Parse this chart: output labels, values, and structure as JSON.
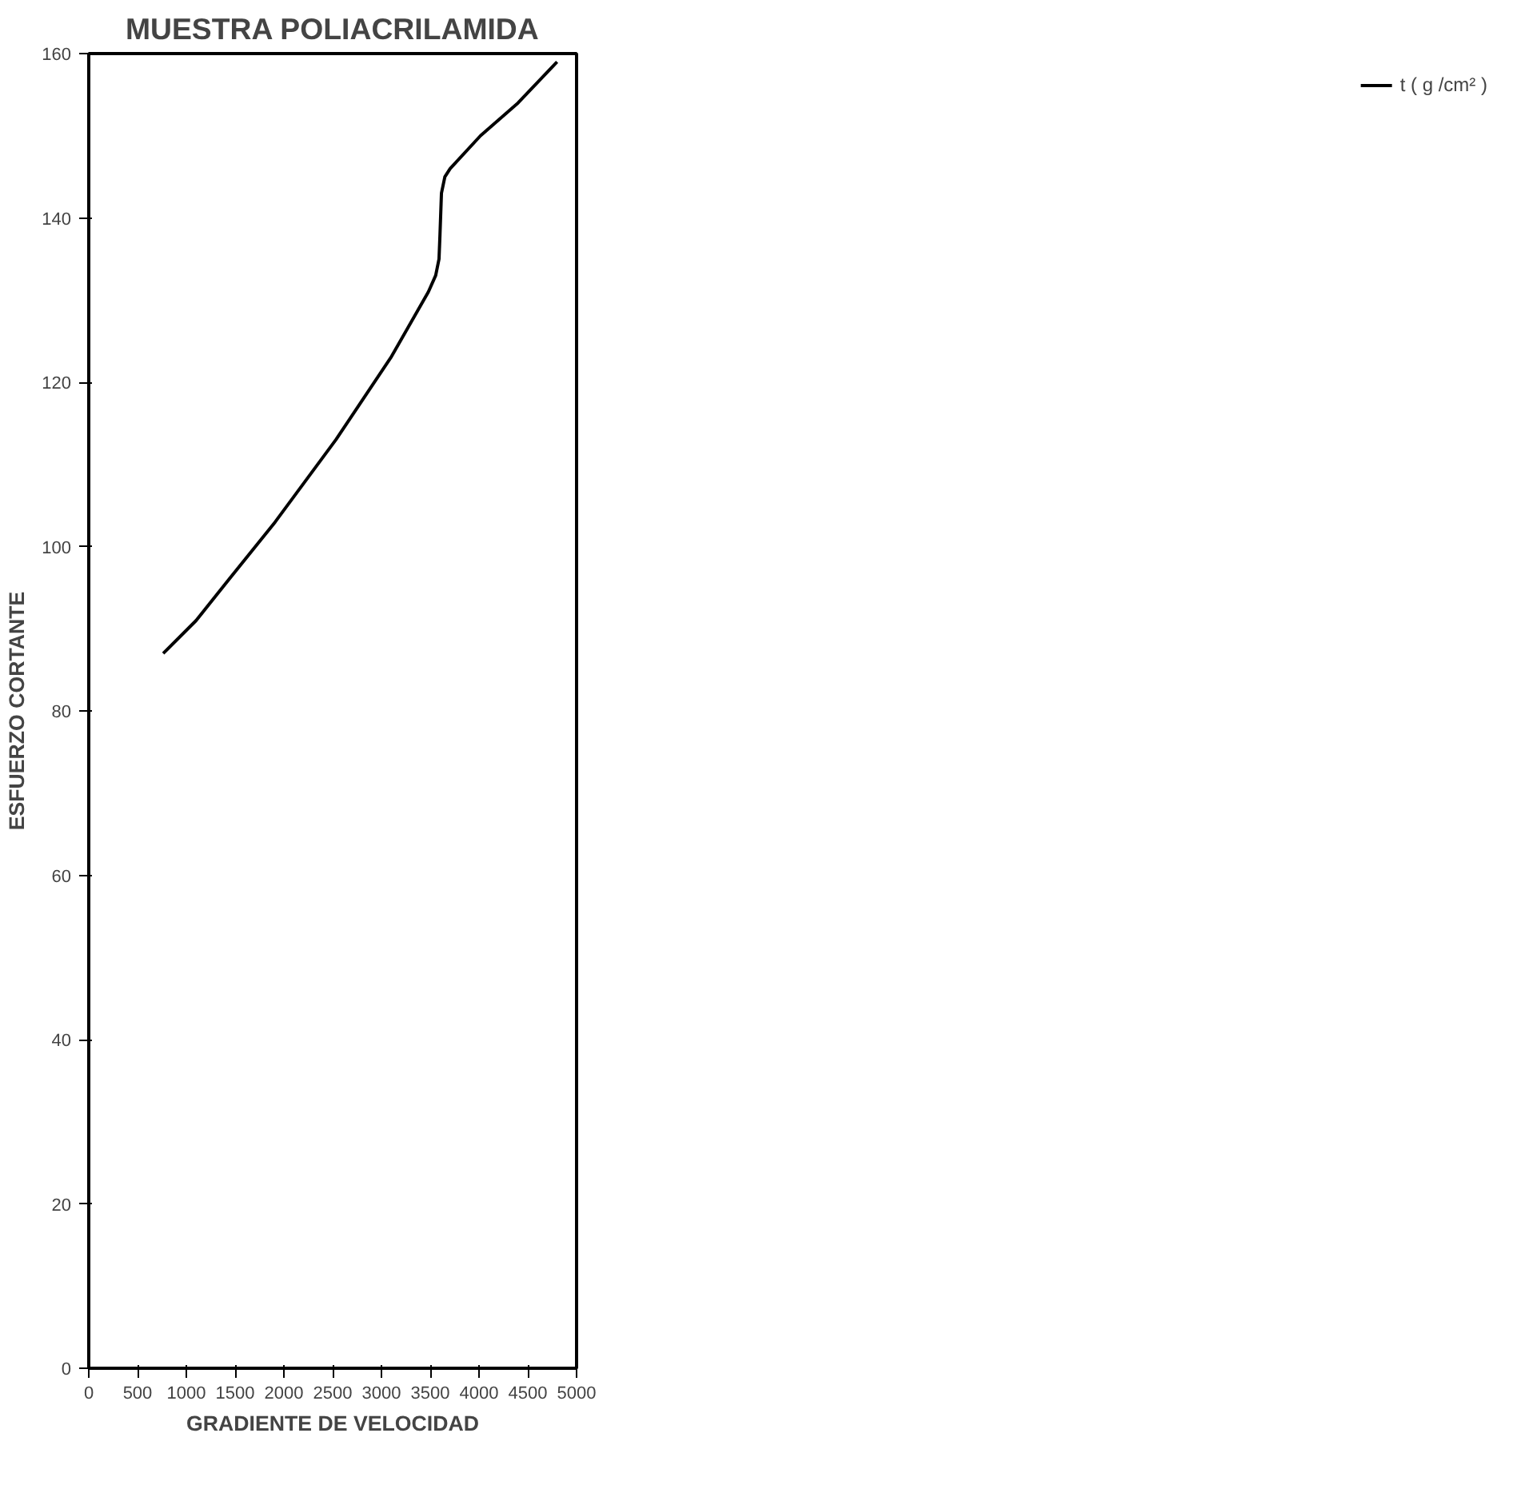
{
  "chart_data": {
    "type": "line",
    "title": "MUESTRA POLIACRILAMIDA",
    "xlabel": "GRADIENTE DE VELOCIDAD",
    "ylabel": "ESFUERZO CORTANTE",
    "series": [
      {
        "name": "t ( g /cm² )",
        "color": "#000000",
        "x": [
          763,
          1100,
          1437,
          1911,
          2533,
          3096,
          3481,
          3556,
          3590,
          3600,
          3615,
          3650,
          3704,
          4015,
          4400,
          4800
        ],
        "values": [
          87,
          91,
          96,
          103,
          113,
          123,
          131,
          133,
          135,
          138,
          143,
          145,
          146,
          150,
          154,
          159
        ]
      }
    ],
    "xlim": [
      0,
      5000
    ],
    "xticks": [
      0,
      500,
      1000,
      1500,
      2000,
      2500,
      3000,
      3500,
      4000,
      4500,
      5000
    ],
    "ylim": [
      0,
      160
    ],
    "yticks": [
      0,
      20,
      40,
      60,
      80,
      100,
      120,
      140,
      160
    ],
    "grid": false,
    "legend": "right",
    "marker": "none",
    "line_style": "solid"
  }
}
